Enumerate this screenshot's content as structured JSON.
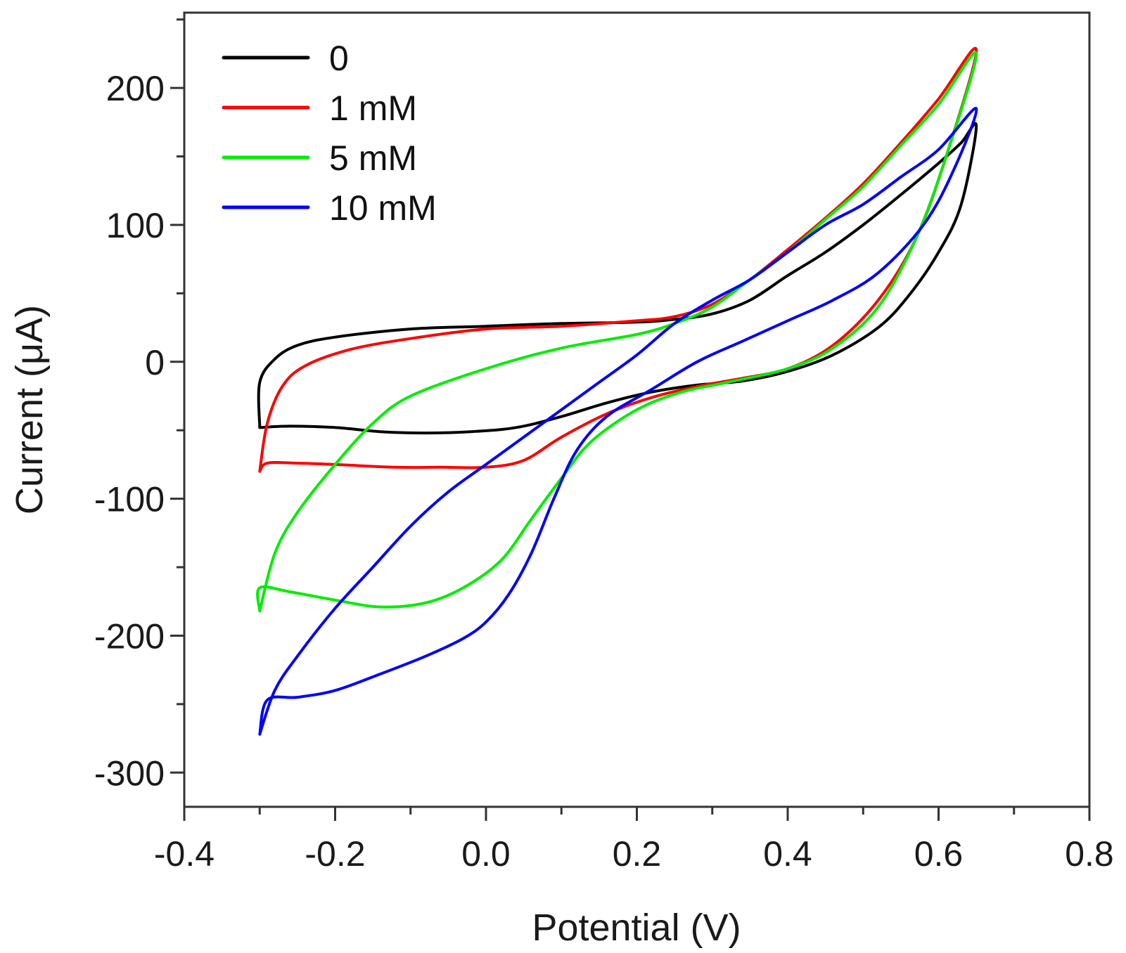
{
  "chart_data": {
    "type": "line",
    "title": "",
    "xlabel": "Potential (V)",
    "ylabel": "Current (μA)",
    "xlim": [
      -0.4,
      0.8
    ],
    "ylim": [
      -325,
      255
    ],
    "x_ticks": [
      -0.4,
      -0.2,
      0.0,
      0.2,
      0.4,
      0.6,
      0.8
    ],
    "x_tick_labels": [
      "-0.4",
      "-0.2",
      "0.0",
      "0.2",
      "0.4",
      "0.6",
      "0.8"
    ],
    "x_minor_ticks": [
      -0.3,
      -0.1,
      0.1,
      0.3,
      0.5,
      0.7
    ],
    "y_ticks": [
      -300,
      -200,
      -100,
      0,
      100,
      200
    ],
    "y_tick_labels": [
      "-300",
      "-200",
      "-100",
      "0",
      "100",
      "200"
    ],
    "y_minor_ticks": [
      -250,
      -150,
      -50,
      50,
      150,
      250
    ],
    "grid": false,
    "legend_position": "top-left",
    "series": [
      {
        "name": "0",
        "color": "#000000",
        "points": [
          [
            -0.3,
            -48
          ],
          [
            -0.26,
            -47
          ],
          [
            -0.2,
            -48
          ],
          [
            -0.14,
            -51
          ],
          [
            -0.08,
            -52
          ],
          [
            -0.02,
            -51
          ],
          [
            0.04,
            -48
          ],
          [
            0.1,
            -40
          ],
          [
            0.16,
            -30
          ],
          [
            0.22,
            -22
          ],
          [
            0.28,
            -17
          ],
          [
            0.34,
            -14
          ],
          [
            0.4,
            -7
          ],
          [
            0.46,
            5
          ],
          [
            0.52,
            25
          ],
          [
            0.56,
            48
          ],
          [
            0.6,
            80
          ],
          [
            0.63,
            115
          ],
          [
            0.65,
            172
          ],
          [
            0.63,
            160
          ],
          [
            0.6,
            145
          ],
          [
            0.55,
            122
          ],
          [
            0.5,
            100
          ],
          [
            0.45,
            80
          ],
          [
            0.4,
            63
          ],
          [
            0.35,
            45
          ],
          [
            0.3,
            35
          ],
          [
            0.25,
            31
          ],
          [
            0.2,
            29
          ],
          [
            0.1,
            28
          ],
          [
            0.0,
            26
          ],
          [
            -0.1,
            24
          ],
          [
            -0.2,
            18
          ],
          [
            -0.25,
            12
          ],
          [
            -0.28,
            2
          ],
          [
            -0.3,
            -15
          ],
          [
            -0.3,
            -48
          ]
        ]
      },
      {
        "name": "1 mM",
        "color": "#ff0000",
        "points": [
          [
            -0.3,
            -80
          ],
          [
            -0.29,
            -74
          ],
          [
            -0.25,
            -74
          ],
          [
            -0.2,
            -75
          ],
          [
            -0.12,
            -77
          ],
          [
            -0.06,
            -77
          ],
          [
            0.0,
            -77
          ],
          [
            0.05,
            -72
          ],
          [
            0.1,
            -55
          ],
          [
            0.16,
            -38
          ],
          [
            0.22,
            -26
          ],
          [
            0.28,
            -18
          ],
          [
            0.34,
            -12
          ],
          [
            0.4,
            -5
          ],
          [
            0.46,
            12
          ],
          [
            0.52,
            45
          ],
          [
            0.57,
            90
          ],
          [
            0.61,
            150
          ],
          [
            0.65,
            228
          ],
          [
            0.6,
            192
          ],
          [
            0.55,
            160
          ],
          [
            0.5,
            130
          ],
          [
            0.45,
            105
          ],
          [
            0.4,
            82
          ],
          [
            0.35,
            60
          ],
          [
            0.3,
            42
          ],
          [
            0.25,
            33
          ],
          [
            0.2,
            30
          ],
          [
            0.1,
            26
          ],
          [
            0.0,
            24
          ],
          [
            -0.1,
            17
          ],
          [
            -0.18,
            9
          ],
          [
            -0.24,
            -3
          ],
          [
            -0.27,
            -18
          ],
          [
            -0.29,
            -45
          ],
          [
            -0.3,
            -80
          ]
        ]
      },
      {
        "name": "5 mM",
        "color": "#00ee00",
        "points": [
          [
            -0.3,
            -182
          ],
          [
            -0.3,
            -165
          ],
          [
            -0.26,
            -168
          ],
          [
            -0.2,
            -174
          ],
          [
            -0.14,
            -179
          ],
          [
            -0.08,
            -176
          ],
          [
            -0.03,
            -165
          ],
          [
            0.02,
            -145
          ],
          [
            0.06,
            -115
          ],
          [
            0.1,
            -85
          ],
          [
            0.14,
            -58
          ],
          [
            0.2,
            -35
          ],
          [
            0.26,
            -22
          ],
          [
            0.32,
            -15
          ],
          [
            0.4,
            -5
          ],
          [
            0.46,
            10
          ],
          [
            0.52,
            40
          ],
          [
            0.57,
            90
          ],
          [
            0.61,
            150
          ],
          [
            0.65,
            225
          ],
          [
            0.6,
            188
          ],
          [
            0.55,
            158
          ],
          [
            0.5,
            128
          ],
          [
            0.45,
            104
          ],
          [
            0.4,
            80
          ],
          [
            0.35,
            60
          ],
          [
            0.3,
            40
          ],
          [
            0.25,
            28
          ],
          [
            0.2,
            20
          ],
          [
            0.1,
            10
          ],
          [
            0.0,
            -5
          ],
          [
            -0.1,
            -25
          ],
          [
            -0.15,
            -45
          ],
          [
            -0.2,
            -75
          ],
          [
            -0.25,
            -110
          ],
          [
            -0.28,
            -140
          ],
          [
            -0.3,
            -182
          ]
        ]
      },
      {
        "name": "10 mM",
        "color": "#0000ff",
        "points": [
          [
            -0.3,
            -272
          ],
          [
            -0.29,
            -247
          ],
          [
            -0.25,
            -245
          ],
          [
            -0.2,
            -240
          ],
          [
            -0.14,
            -228
          ],
          [
            -0.08,
            -215
          ],
          [
            -0.03,
            -202
          ],
          [
            0.0,
            -190
          ],
          [
            0.03,
            -170
          ],
          [
            0.06,
            -140
          ],
          [
            0.09,
            -100
          ],
          [
            0.12,
            -65
          ],
          [
            0.16,
            -40
          ],
          [
            0.22,
            -20
          ],
          [
            0.28,
            0
          ],
          [
            0.34,
            15
          ],
          [
            0.4,
            30
          ],
          [
            0.46,
            45
          ],
          [
            0.52,
            65
          ],
          [
            0.58,
            100
          ],
          [
            0.62,
            140
          ],
          [
            0.65,
            185
          ],
          [
            0.6,
            155
          ],
          [
            0.55,
            135
          ],
          [
            0.5,
            115
          ],
          [
            0.45,
            100
          ],
          [
            0.4,
            80
          ],
          [
            0.35,
            60
          ],
          [
            0.3,
            45
          ],
          [
            0.25,
            28
          ],
          [
            0.2,
            5
          ],
          [
            0.15,
            -15
          ],
          [
            0.1,
            -35
          ],
          [
            0.05,
            -55
          ],
          [
            0.0,
            -75
          ],
          [
            -0.05,
            -95
          ],
          [
            -0.1,
            -120
          ],
          [
            -0.15,
            -150
          ],
          [
            -0.2,
            -180
          ],
          [
            -0.25,
            -215
          ],
          [
            -0.28,
            -240
          ],
          [
            -0.3,
            -272
          ]
        ]
      }
    ]
  }
}
